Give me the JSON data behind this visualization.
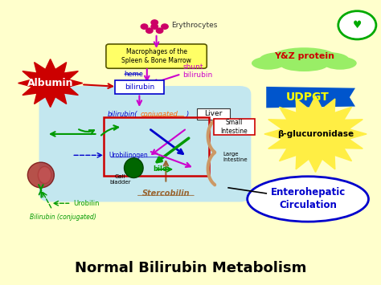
{
  "bg_color": "#ffffcc",
  "title": "Normal Bilirubin Metabolism",
  "title_fontsize": 13,
  "title_fontweight": "bold",
  "title_color": "#000000",
  "elements": {
    "erythrocytes_text": "Erythrocytes",
    "macrophages_text": "Macrophages of the\nSpleen & Bone Marrow",
    "albumin_text": "Albumin",
    "bilirubin_box_text": "bilirubin",
    "heme_text": "heme",
    "shunt_text": "shunt\nbilirubin",
    "liver_text": "Liver",
    "yz_text": "Y&Z protein",
    "udpgt_text": "UDPGT",
    "beta_text": "β-glucuronidase",
    "gall_text": "Gall\nbladder",
    "bile_text": "bile",
    "small_int_text": "Small\nIntestine",
    "large_int_text": "Large\nIntestine",
    "urobilinogen_text": "Urobilinogen",
    "stercobilin_text": "Stercobilin",
    "urobilin_text": "Urobilin",
    "bilirubin_conj2_text": "Bilirubin (conjugated)",
    "enterohepatic_text": "Enterohepatic\nCirculation"
  },
  "colors": {
    "macrophages_fill": "#ffff66",
    "albumin_fill": "#cc0000",
    "albumin_text": "#ffffff",
    "bilirubin_box_fill": "#ffffff",
    "bilirubin_box_edge": "#0000cc",
    "heme_color": "#0000cc",
    "shunt_color": "#cc00cc",
    "bilirubin_conj_blue": "#0000cc",
    "bilirubin_conj_orange": "#ff6600",
    "liver_bg": "#aaddff",
    "yz_fill": "#99ee66",
    "yz_text": "#cc0000",
    "udpgt_fill": "#0055cc",
    "udpgt_text": "#ffff00",
    "beta_fill": "#ffee44",
    "green_arrow": "#009900",
    "magenta_arrow": "#cc00cc",
    "blue_arrow": "#0000cc",
    "brown_arrow": "#996633",
    "urobilinogen_color": "#0000cc",
    "stercobilin_color": "#996633",
    "urobilin_color": "#009900",
    "bilirubin_conj2_color": "#009900",
    "enterohepatic_fill": "#ffffff",
    "enterohepatic_edge": "#0000cc",
    "enterohepatic_text": "#0000cc",
    "erythrocytes_color": "#cc0066"
  }
}
